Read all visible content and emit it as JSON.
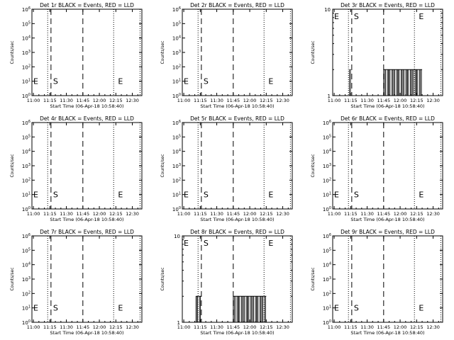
{
  "chart_data": [
    {
      "type": "line",
      "title": "Det 1r BLACK = Events, RED = LLD",
      "xlabel": "Start Time (06-Apr-18 10:58:40)",
      "ylabel": "Counts/sec",
      "x_ticks": [
        "11:00",
        "11:15",
        "11:30",
        "11:45",
        "12:00",
        "12:15",
        "12:30"
      ],
      "y_ticks": [
        "10^0",
        "10^1",
        "10^2",
        "10^3",
        "10^4",
        "10^5",
        "10^6"
      ],
      "markers": [
        {
          "label": "E",
          "position": "left"
        },
        {
          "label": "S",
          "position": "11:16"
        },
        {
          "label": "E",
          "position": "12:15"
        }
      ],
      "bursts": []
    },
    {
      "type": "line",
      "title": "Det 2r BLACK = Events, RED = LLD",
      "xlabel": "Start Time (06-Apr-18 10:58:40)",
      "ylabel": "Counts/sec",
      "x_ticks": [
        "11:00",
        "11:15",
        "11:30",
        "11:45",
        "12:00",
        "12:15",
        "12:30"
      ],
      "y_ticks": [
        "10^0",
        "10^1",
        "10^2",
        "10^3",
        "10^4",
        "10^5",
        "10^6"
      ],
      "markers": [
        {
          "label": "E",
          "position": "left"
        },
        {
          "label": "S",
          "position": "11:16"
        },
        {
          "label": "E",
          "position": "12:15"
        }
      ],
      "bursts": []
    },
    {
      "type": "line",
      "title": "Det 3r BLACK = Events, RED = LLD",
      "xlabel": "Start Time (06-Apr-18 10:58:40)",
      "ylabel": "Counts/sec",
      "x_ticks": [
        "11:00",
        "11:15",
        "11:30",
        "11:45",
        "12:00",
        "12:15",
        "12:30"
      ],
      "y_ticks": [
        "1",
        "10"
      ],
      "markers": [
        {
          "label": "E",
          "position": "left"
        },
        {
          "label": "S",
          "position": "11:16"
        },
        {
          "label": "E",
          "position": "12:15"
        }
      ],
      "bursts": [
        {
          "start": "11:14",
          "end": "11:15",
          "level": 2
        },
        {
          "start": "11:45",
          "end": "12:20",
          "level": 2
        }
      ]
    },
    {
      "type": "line",
      "title": "Det 4r BLACK = Events, RED = LLD",
      "xlabel": "Start Time (06-Apr-18 10:58:40)",
      "ylabel": "Counts/sec",
      "x_ticks": [
        "11:00",
        "11:15",
        "11:30",
        "11:45",
        "12:00",
        "12:15",
        "12:30"
      ],
      "y_ticks": [
        "10^0",
        "10^1",
        "10^2",
        "10^3",
        "10^4",
        "10^5",
        "10^6"
      ],
      "markers": [
        {
          "label": "E",
          "position": "left"
        },
        {
          "label": "S",
          "position": "11:16"
        },
        {
          "label": "E",
          "position": "12:15"
        }
      ],
      "bursts": []
    },
    {
      "type": "line",
      "title": "Det 5r BLACK = Events, RED = LLD",
      "xlabel": "Start Time (06-Apr-18 10:58:40)",
      "ylabel": "Counts/sec",
      "x_ticks": [
        "11:00",
        "11:15",
        "11:30",
        "11:45",
        "12:00",
        "12:15",
        "12:30"
      ],
      "y_ticks": [
        "10^0",
        "10^1",
        "10^2",
        "10^3",
        "10^4",
        "10^5",
        "10^6"
      ],
      "markers": [
        {
          "label": "E",
          "position": "left"
        },
        {
          "label": "S",
          "position": "11:16"
        },
        {
          "label": "E",
          "position": "12:15"
        }
      ],
      "bursts": []
    },
    {
      "type": "line",
      "title": "Det 6r BLACK = Events, RED = LLD",
      "xlabel": "Start Time (06-Apr-18 10:58:40)",
      "ylabel": "Counts/sec",
      "x_ticks": [
        "11:00",
        "11:15",
        "11:30",
        "11:45",
        "12:00",
        "12:15",
        "12:30"
      ],
      "y_ticks": [
        "10^0",
        "10^1",
        "10^2",
        "10^3",
        "10^4",
        "10^5",
        "10^6"
      ],
      "markers": [
        {
          "label": "E",
          "position": "left"
        },
        {
          "label": "S",
          "position": "11:16"
        },
        {
          "label": "E",
          "position": "12:15"
        }
      ],
      "bursts": []
    },
    {
      "type": "line",
      "title": "Det 7r BLACK = Events, RED = LLD",
      "xlabel": "Start Time (06-Apr-18 10:58:40)",
      "ylabel": "Counts/sec",
      "x_ticks": [
        "11:00",
        "11:15",
        "11:30",
        "11:45",
        "12:00",
        "12:15",
        "12:30"
      ],
      "y_ticks": [
        "10^0",
        "10^1",
        "10^2",
        "10^3",
        "10^4",
        "10^5",
        "10^6"
      ],
      "markers": [
        {
          "label": "E",
          "position": "left"
        },
        {
          "label": "S",
          "position": "11:16"
        },
        {
          "label": "E",
          "position": "12:15"
        }
      ],
      "bursts": []
    },
    {
      "type": "line",
      "title": "Det 8r BLACK = Events, RED = LLD",
      "xlabel": "Start Time (06-Apr-18 10:58:40)",
      "ylabel": "Counts/sec",
      "x_ticks": [
        "11:00",
        "11:15",
        "11:30",
        "11:45",
        "12:00",
        "12:15",
        "12:30"
      ],
      "y_ticks": [
        "1",
        "10"
      ],
      "markers": [
        {
          "label": "E",
          "position": "left"
        },
        {
          "label": "S",
          "position": "11:16"
        },
        {
          "label": "E",
          "position": "12:15"
        }
      ],
      "bursts": [
        {
          "start": "11:11",
          "end": "11:16",
          "level": 2
        },
        {
          "start": "11:45",
          "end": "12:15",
          "level": 2
        }
      ]
    },
    {
      "type": "line",
      "title": "Det 9r BLACK = Events, RED = LLD",
      "xlabel": "Start Time (06-Apr-18 10:58:40)",
      "ylabel": "Counts/sec",
      "x_ticks": [
        "11:00",
        "11:15",
        "11:30",
        "11:45",
        "12:00",
        "12:15",
        "12:30"
      ],
      "y_ticks": [
        "10^0",
        "10^1",
        "10^2",
        "10^3",
        "10^4",
        "10^5",
        "10^6"
      ],
      "markers": [
        {
          "label": "E",
          "position": "left"
        },
        {
          "label": "S",
          "position": "11:16"
        },
        {
          "label": "E",
          "position": "12:15"
        }
      ],
      "bursts": []
    }
  ]
}
